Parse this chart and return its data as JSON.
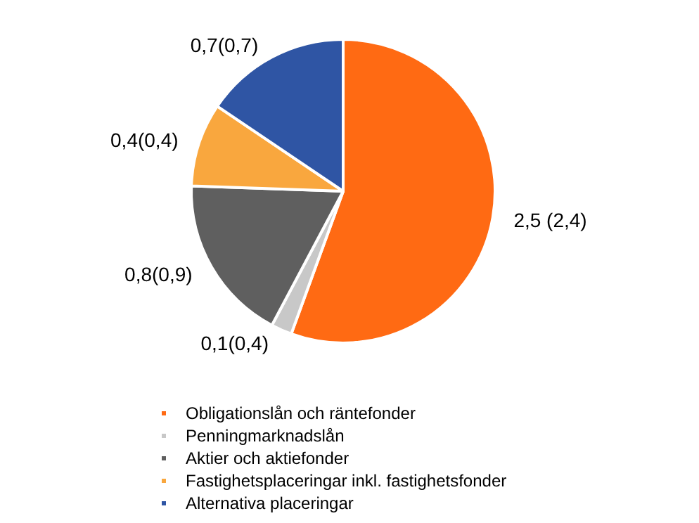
{
  "chart_data": {
    "type": "pie",
    "categories": [
      "Obligationslån och räntefonder",
      "Penningmarknadslån",
      "Aktier och aktiefonder",
      "Fastighetsplaceringar inkl. fastighetsfonder",
      "Alternativa placeringar"
    ],
    "values": [
      2.5,
      0.1,
      0.8,
      0.4,
      0.7
    ],
    "value_labels": [
      "2,5 (2,4)",
      "0,1(0,4)",
      "0,8(0,9)",
      "0,4(0,4)",
      "0,7(0,7)"
    ],
    "colors": [
      "#ff6a13",
      "#c8c8c8",
      "#5f5f5f",
      "#f9a73e",
      "#2f55a4"
    ],
    "legend": "bottom"
  }
}
